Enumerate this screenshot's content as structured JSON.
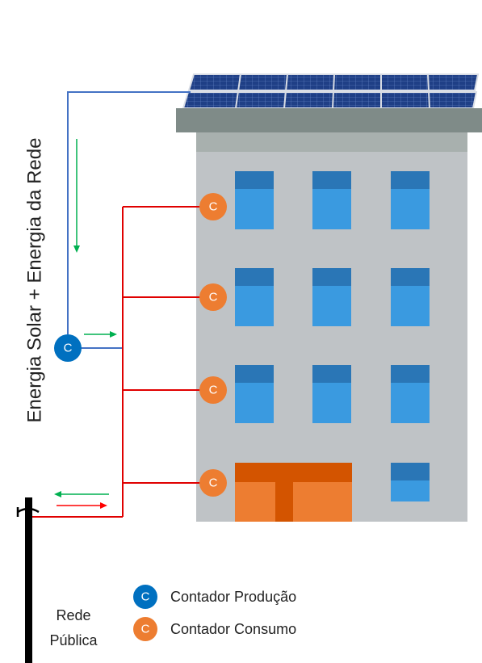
{
  "diagram": {
    "vertical_title": "Energia Solar + Energia da Rede",
    "pole_label_line1": "Rede",
    "pole_label_line2": "Pública"
  },
  "meters": {
    "production_letter": "C",
    "consumption_letter": "C"
  },
  "legend": {
    "items": [
      {
        "letter": "C",
        "label": "Contador Produção",
        "color": "#0070c0"
      },
      {
        "letter": "C",
        "label": "Contador Consumo",
        "color": "#ed7d31"
      }
    ]
  },
  "colors": {
    "production_line": "#4472c4",
    "consumption_line": "#e00000",
    "export_arrow": "#00b050",
    "import_arrow": "#ff0000",
    "building_wall": "#bfc3c6",
    "building_top": "#7f8b88",
    "window_light": "#3a9ae0",
    "window_dark": "#2a76b6",
    "door_orange": "#ed7d31",
    "door_dark": "#d35400",
    "solar_panel": "#1d3a7a"
  }
}
